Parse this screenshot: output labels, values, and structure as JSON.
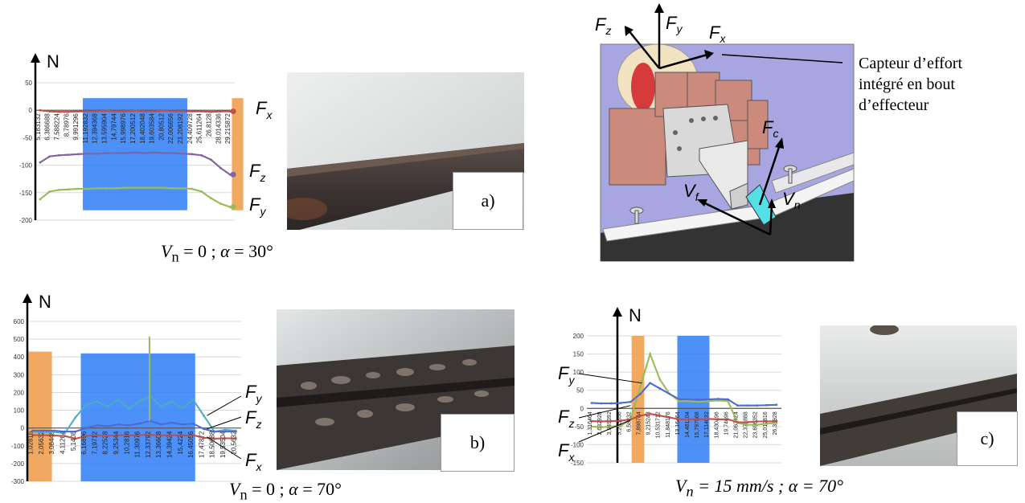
{
  "captions": {
    "a": "V_n = 0 ; α = 30°",
    "b": "V_n = 0 ; α = 70°",
    "c": "V_n = 15 mm/s ; α = 70°"
  },
  "panel_labels": {
    "a": "a)",
    "b": "b)",
    "c": "c)"
  },
  "unit_label": "N",
  "force_labels": {
    "Fx": "F_x",
    "Fy": "F_y",
    "Fz": "F_z"
  },
  "diagram": {
    "sensor_text": [
      "Capteur d’effort",
      "intégré en bout",
      "d’effecteur"
    ],
    "vectors": [
      "F_z",
      "F_y",
      "F_x",
      "F_c",
      "V_f",
      "V_n"
    ]
  },
  "colors": {
    "Fx": "#c0504d",
    "Fy": "#9bbb59",
    "Fz": "#8064a2",
    "Fy_b": "#4bacc6",
    "Fz_b": "#4f6bd0",
    "highlight_blue": "#2e7cf6",
    "highlight_orange": "#f0a050"
  },
  "chart_data": [
    {
      "type": "line",
      "panel": "a",
      "ylim": [
        -200,
        50
      ],
      "yticks": [
        50,
        0,
        -50,
        -100,
        -150,
        -200
      ],
      "x_tick_labels": [
        "5,183132",
        "6,386688",
        "7,588224",
        "8,78976",
        "9,991296",
        "11,192832",
        "12,394368",
        "13,595904",
        "14,79744",
        "15,998976",
        "17,200512",
        "18,402048",
        "19,603584",
        "20,80512",
        "22,006656",
        "23,208192",
        "24,409728",
        "25,611264",
        "26,8128",
        "28,014336",
        "29,215872"
      ],
      "series": [
        {
          "name": "F_x",
          "values": [
            0,
            -2,
            -3,
            -3,
            -2,
            -2,
            -2,
            -1,
            -2,
            -2,
            -1,
            -2,
            -2,
            -1,
            -2,
            -2,
            -2,
            -2,
            -3,
            -2,
            -2
          ]
        },
        {
          "name": "F_z",
          "values": [
            -95,
            -84,
            -82,
            -81,
            -80,
            -79,
            -79,
            -78,
            -78,
            -78,
            -77,
            -78,
            -77,
            -78,
            -78,
            -79,
            -80,
            -82,
            -90,
            -105,
            -117
          ]
        },
        {
          "name": "F_y",
          "values": [
            -162,
            -148,
            -145,
            -144,
            -143,
            -143,
            -142,
            -142,
            -142,
            -141,
            -141,
            -141,
            -141,
            -141,
            -142,
            -142,
            -143,
            -148,
            -160,
            -170,
            -176
          ]
        }
      ]
    },
    {
      "type": "line",
      "panel": "b",
      "ylim": [
        -300,
        600
      ],
      "yticks": [
        600,
        500,
        400,
        300,
        200,
        100,
        0,
        -100,
        -200,
        -300
      ],
      "x_tick_labels": [
        "1,02816",
        "2,05632",
        "3,08448",
        "4,11264",
        "5,1408",
        "6,16896",
        "7,19712",
        "8,22528",
        "9,25344",
        "10,2816",
        "11,30976",
        "12,33792",
        "13,36608",
        "14,39424",
        "15,4224",
        "16,45056",
        "17,47872",
        "18,50688",
        "19,53504",
        "20,5632"
      ],
      "series": [
        {
          "name": "F_y",
          "values": [
            -20,
            -25,
            -22,
            -30,
            60,
            130,
            150,
            120,
            160,
            110,
            150,
            180,
            120,
            150,
            110,
            160,
            70,
            -20,
            -10,
            -15
          ]
        },
        {
          "name": "F_z",
          "values": [
            -15,
            -15,
            -15,
            -20,
            -20,
            0,
            15,
            10,
            20,
            15,
            25,
            40,
            20,
            30,
            20,
            25,
            -5,
            -20,
            -20,
            -20
          ]
        },
        {
          "name": "F_x",
          "values": [
            -40,
            -40,
            -42,
            -45,
            -60,
            -45,
            -40,
            -45,
            -40,
            -42,
            -40,
            -38,
            -42,
            -40,
            -42,
            -40,
            -55,
            -60,
            -58,
            -58
          ]
        }
      ]
    },
    {
      "type": "line",
      "panel": "c",
      "ylim": [
        -150,
        200
      ],
      "yticks": [
        200,
        150,
        100,
        50,
        0,
        -50,
        -100,
        -150
      ],
      "x_tick_labels": [
        "1,316464",
        "2,632928",
        "3,949392",
        "5,265856",
        "6,58232",
        "7,898784",
        "9,215248",
        "10,531712",
        "11,848176",
        "13,16464",
        "14,481104",
        "15,797568",
        "17,114032",
        "18,430496",
        "19,74696",
        "21,063424",
        "22,379888",
        "23,696352",
        "25,012816",
        "26,32928"
      ],
      "series": [
        {
          "name": "F_y",
          "values": [
            -50,
            -52,
            -50,
            -48,
            -30,
            60,
            150,
            80,
            40,
            20,
            20,
            18,
            20,
            22,
            20,
            -40,
            -45,
            -45,
            -42,
            -40
          ]
        },
        {
          "name": "F_z",
          "values": [
            15,
            14,
            14,
            15,
            18,
            40,
            70,
            55,
            40,
            25,
            25,
            24,
            25,
            26,
            25,
            8,
            8,
            8,
            9,
            10
          ]
        },
        {
          "name": "F_x",
          "values": [
            -35,
            -36,
            -35,
            -34,
            -30,
            -20,
            -15,
            -20,
            -25,
            -30,
            -30,
            -30,
            -29,
            -30,
            -30,
            -38,
            -38,
            -36,
            -36,
            -35
          ]
        }
      ]
    }
  ]
}
